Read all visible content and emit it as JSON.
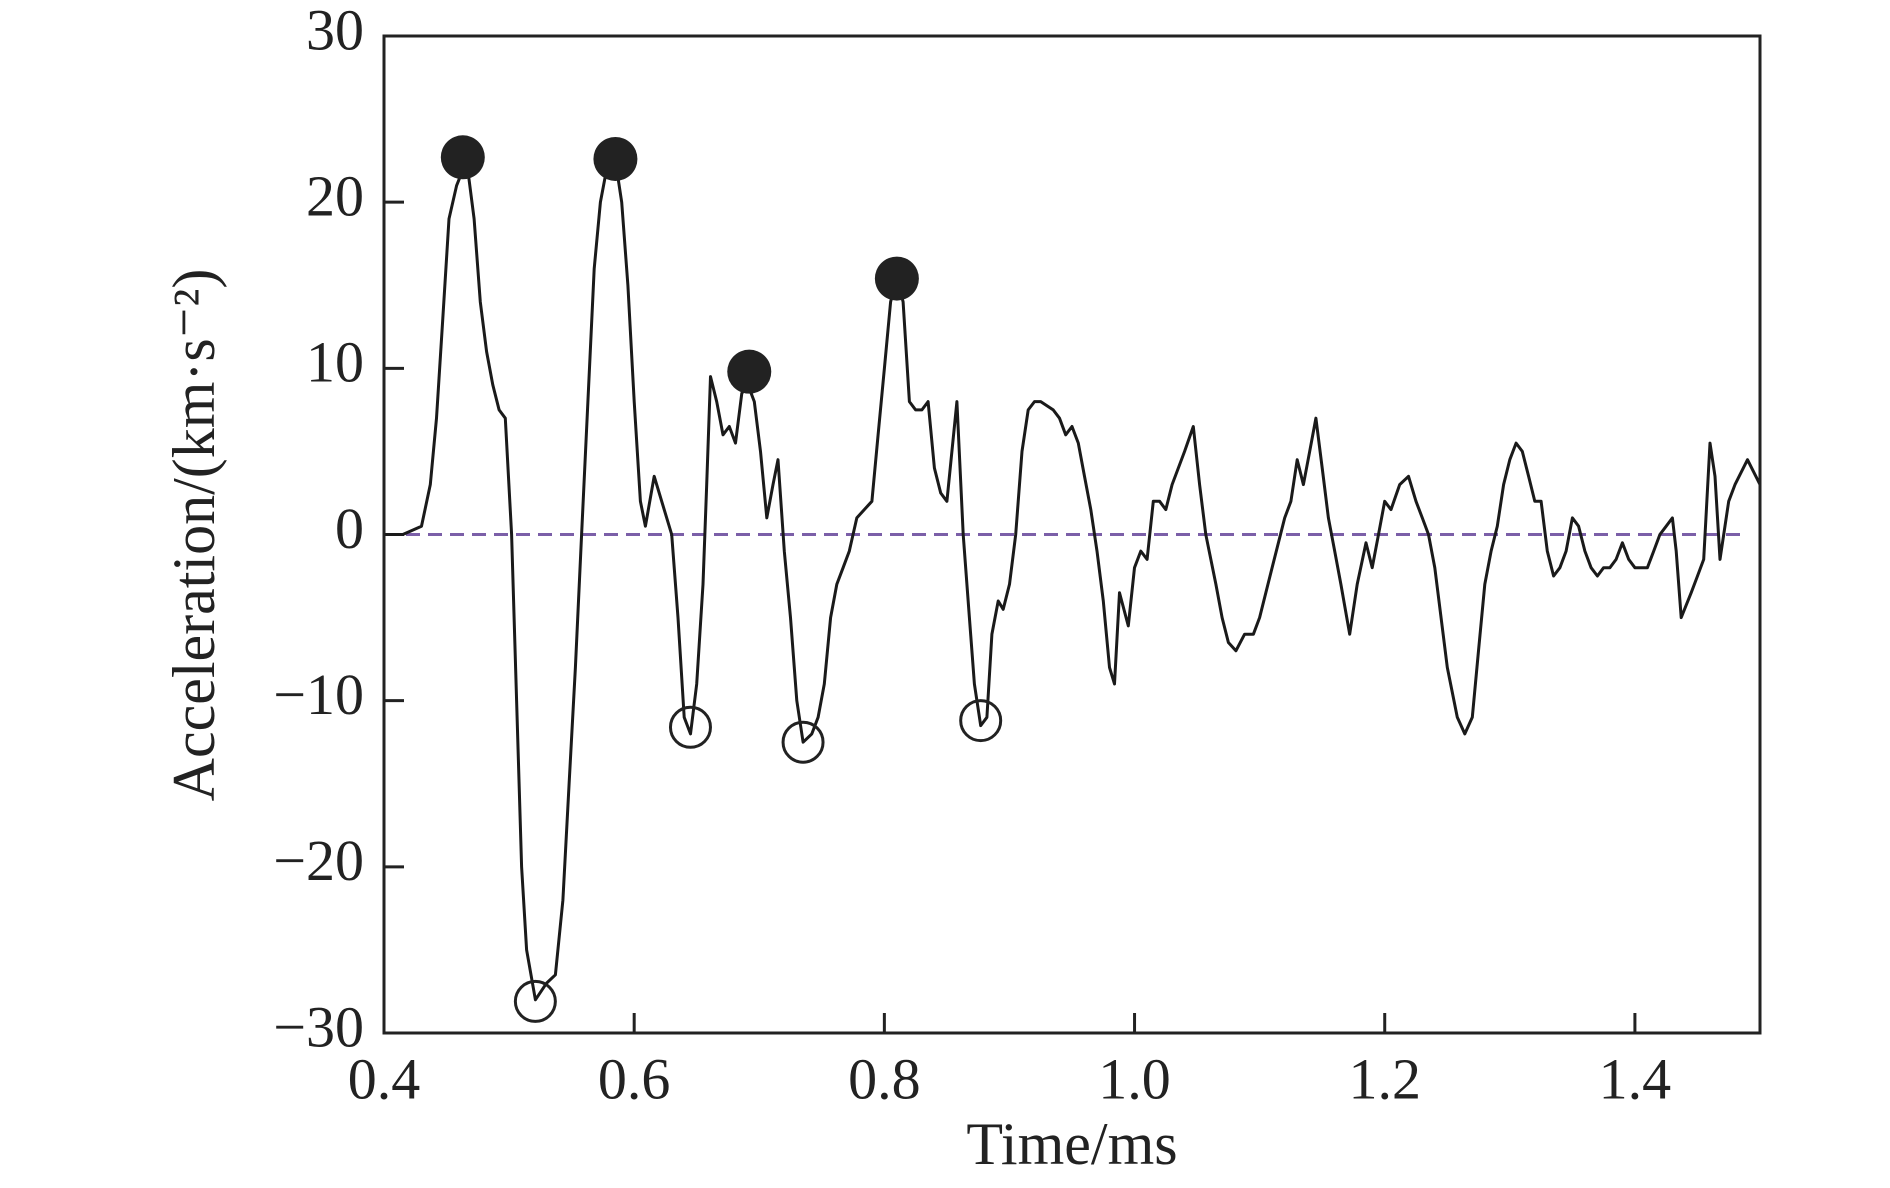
{
  "chart_data": {
    "type": "line",
    "xlabel": "Time/ms",
    "ylabel": "Acceleration/(km·s⁻²)",
    "xlim": [
      0.4,
      1.5
    ],
    "ylim": [
      -30,
      30
    ],
    "xticks": [
      0.4,
      0.6,
      0.8,
      {
        "value": 1,
        "label": "1.0"
      },
      1.2,
      1.4
    ],
    "yticks": [
      {
        "value": -30,
        "label": "−30"
      },
      {
        "value": -20,
        "label": "−20"
      },
      {
        "value": -10,
        "label": "−10"
      },
      0,
      10,
      20,
      30
    ],
    "reference_line": {
      "value": 0,
      "color": "#7b5fa8"
    },
    "series": [
      {
        "color": "#1a1a1a",
        "x": [
          0.4,
          0.415,
          0.43,
          0.437,
          0.442,
          0.447,
          0.452,
          0.458,
          0.466,
          0.472,
          0.477,
          0.482,
          0.487,
          0.492,
          0.497,
          0.502,
          0.506,
          0.51,
          0.514,
          0.521,
          0.53,
          0.537,
          0.543,
          0.548,
          0.553,
          0.558,
          0.563,
          0.568,
          0.573,
          0.578,
          0.585,
          0.59,
          0.595,
          0.6,
          0.605,
          0.609,
          0.616,
          0.622,
          0.63,
          0.635,
          0.64,
          0.645,
          0.65,
          0.655,
          0.658,
          0.661,
          0.666,
          0.671,
          0.676,
          0.681,
          0.686,
          0.691,
          0.696,
          0.701,
          0.706,
          0.711,
          0.715,
          0.72,
          0.725,
          0.73,
          0.735,
          0.742,
          0.747,
          0.752,
          0.757,
          0.762,
          0.767,
          0.772,
          0.778,
          0.784,
          0.79,
          0.795,
          0.8,
          0.805,
          0.81,
          0.815,
          0.82,
          0.825,
          0.83,
          0.835,
          0.84,
          0.845,
          0.85,
          0.858,
          0.863,
          0.868,
          0.872,
          0.877,
          0.882,
          0.886,
          0.891,
          0.895,
          0.9,
          0.905,
          0.91,
          0.915,
          0.92,
          0.925,
          0.935,
          0.94,
          0.945,
          0.95,
          0.955,
          0.96,
          0.965,
          0.97,
          0.975,
          0.98,
          0.984,
          0.988,
          0.995,
          1.0,
          1.005,
          1.01,
          1.015,
          1.02,
          1.025,
          1.03,
          1.04,
          1.047,
          1.052,
          1.057,
          1.065,
          1.07,
          1.075,
          1.081,
          1.088,
          1.095,
          1.1,
          1.11,
          1.12,
          1.125,
          1.13,
          1.135,
          1.14,
          1.145,
          1.15,
          1.155,
          1.16,
          1.165,
          1.172,
          1.178,
          1.185,
          1.19,
          1.195,
          1.2,
          1.205,
          1.212,
          1.219,
          1.225,
          1.23,
          1.235,
          1.24,
          1.25,
          1.258,
          1.264,
          1.27,
          1.275,
          1.28,
          1.285,
          1.29,
          1.295,
          1.3,
          1.305,
          1.31,
          1.315,
          1.32,
          1.325,
          1.33,
          1.335,
          1.34,
          1.345,
          1.35,
          1.355,
          1.36,
          1.365,
          1.37,
          1.375,
          1.38,
          1.385,
          1.39,
          1.395,
          1.4,
          1.41,
          1.415,
          1.42,
          1.425,
          1.43,
          1.433,
          1.437,
          1.445,
          1.45,
          1.455,
          1.46,
          1.464,
          1.468,
          1.475,
          1.48,
          1.49,
          1.5
        ],
        "values": [
          0,
          0,
          0.5,
          3,
          7,
          13,
          19,
          21,
          22.5,
          19,
          14,
          11,
          9,
          7.5,
          7,
          0,
          -10,
          -20,
          -25,
          -28,
          -27,
          -26.5,
          -22,
          -15,
          -8,
          0,
          8,
          16,
          20,
          22,
          22.5,
          20,
          15,
          8,
          2,
          0.5,
          3.5,
          2,
          0,
          -5,
          -11,
          -12,
          -9,
          -3,
          3,
          9.5,
          8,
          6,
          6.5,
          5.5,
          8.5,
          9,
          8,
          5,
          1,
          3,
          4.5,
          -1,
          -5,
          -10,
          -12.5,
          -12,
          -11,
          -9,
          -5,
          -3,
          -2,
          -1,
          1,
          1.5,
          2,
          6,
          10,
          14,
          15.5,
          14,
          8,
          7.5,
          7.5,
          8,
          4,
          2.5,
          2,
          8,
          0,
          -5,
          -9,
          -11.5,
          -11,
          -6,
          -4,
          -4.5,
          -3,
          0,
          5,
          7.5,
          8,
          8,
          7.5,
          7,
          6,
          6.5,
          5.5,
          3.5,
          1.5,
          -1,
          -4,
          -8,
          -9,
          -3.5,
          -5.5,
          -2,
          -1,
          -1.5,
          2,
          2,
          1.5,
          3,
          5,
          6.5,
          3,
          0,
          -3,
          -5,
          -6.5,
          -7,
          -6,
          -6,
          -5,
          -2,
          1,
          2,
          4.5,
          3,
          5,
          7,
          4,
          1,
          -1,
          -3,
          -6,
          -3,
          -0.5,
          -2,
          0,
          2,
          1.5,
          3,
          3.5,
          2,
          1,
          0,
          -2,
          -8,
          -11,
          -12,
          -11,
          -7,
          -3,
          -1,
          0.5,
          3,
          4.5,
          5.5,
          5,
          3.5,
          2,
          2,
          -1,
          -2.5,
          -2,
          -1,
          1,
          0.5,
          -1,
          -2,
          -2.5,
          -2,
          -2,
          -1.5,
          -0.5,
          -1.5,
          -2,
          -2,
          -1,
          0,
          0.5,
          1,
          -1,
          -5,
          -3.5,
          -2.5,
          -1.5,
          5.5,
          3.5,
          -1.5,
          2,
          3,
          4.5,
          3
        ]
      },
      {
        "type": "scatter",
        "marker": "filled",
        "color": "#222222",
        "x": [
          0.463,
          0.585,
          0.692,
          0.81
        ],
        "values": [
          22.7,
          22.6,
          9.8,
          15.4
        ]
      },
      {
        "type": "scatter",
        "marker": "open",
        "color": "#222222",
        "x": [
          0.521,
          0.645,
          0.735,
          0.877
        ],
        "values": [
          -28.1,
          -11.6,
          -12.5,
          -11.2
        ]
      }
    ]
  }
}
